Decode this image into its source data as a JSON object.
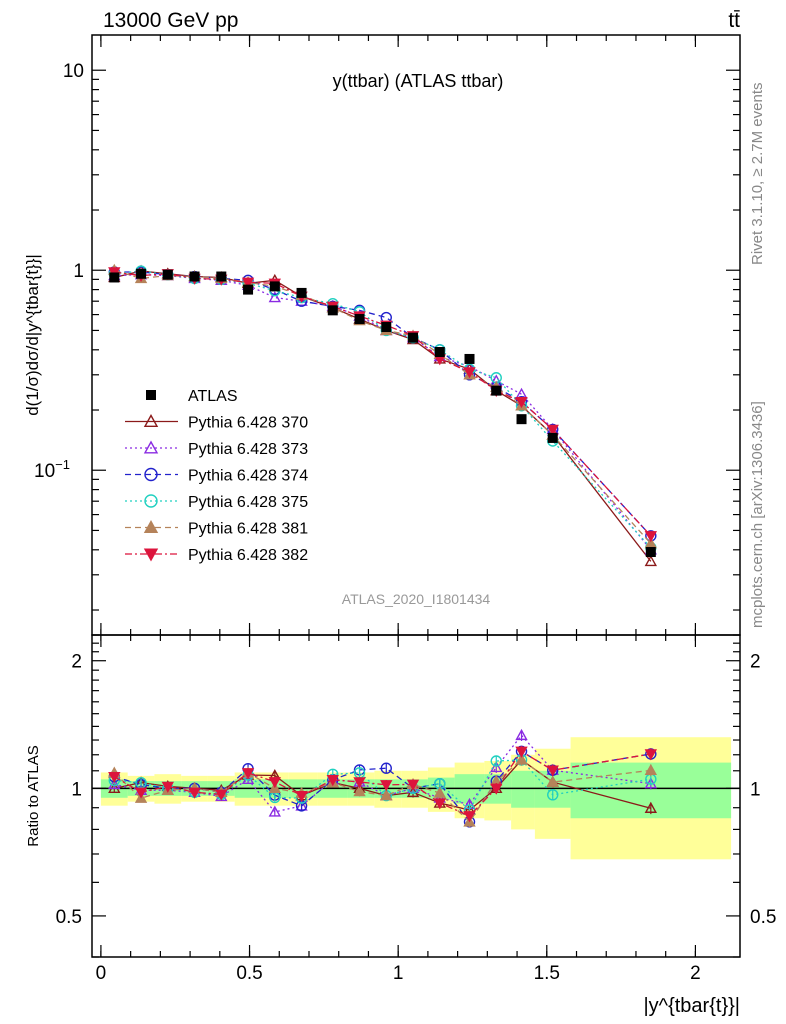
{
  "header": {
    "energy_label": "13000 GeV pp",
    "process_label": "tt̄"
  },
  "side": {
    "rivet_label": "Rivet 3.1.10, ≥ 2.7M events",
    "mcplots_label": "mcplots.cern.ch [arXiv:1306.3436]"
  },
  "chart_data": {
    "type": "line",
    "title": "y(ttbar) (ATLAS ttbar)",
    "analysis_label": "ATLAS_2020_I1801434",
    "ylabel_main": "d(1/σ)dσ/d|y^{tbar{t}}|",
    "ylabel_ratio": "Ratio to ATLAS",
    "xlabel": "|y^{tbar{t}}|",
    "x_ticks": [
      "0",
      "0.5",
      "1",
      "1.5",
      "2"
    ],
    "main_y_ticks": [
      "10^{-1}",
      "1",
      "10"
    ],
    "ratio_y_ticks": [
      "0.5",
      "1",
      "2"
    ],
    "xlim": [
      -0.03,
      2.15
    ],
    "ylim_main": [
      0.015,
      15
    ],
    "ylim_ratio": [
      0.4,
      2.3
    ],
    "y_scale_main": "log",
    "y_scale_ratio": "log",
    "legend_position": "middle-left",
    "x": [
      0.045,
      0.135,
      0.225,
      0.315,
      0.405,
      0.495,
      0.585,
      0.675,
      0.78,
      0.87,
      0.96,
      1.05,
      1.14,
      1.24,
      1.33,
      1.415,
      1.52,
      1.85
    ],
    "bin_edges": [
      0,
      0.09,
      0.18,
      0.27,
      0.36,
      0.45,
      0.54,
      0.63,
      0.73,
      0.83,
      0.92,
      1.01,
      1.1,
      1.19,
      1.29,
      1.38,
      1.46,
      1.58,
      2.12
    ],
    "data": {
      "name": "ATLAS",
      "color": "#000000",
      "values": [
        0.92,
        0.96,
        0.95,
        0.93,
        0.93,
        0.8,
        0.83,
        0.77,
        0.63,
        0.57,
        0.52,
        0.46,
        0.39,
        0.36,
        0.25,
        0.18,
        0.145,
        0.039
      ],
      "band_inner": [
        0.05,
        0.04,
        0.04,
        0.04,
        0.04,
        0.05,
        0.05,
        0.05,
        0.05,
        0.05,
        0.05,
        0.05,
        0.06,
        0.08,
        0.08,
        0.1,
        0.1,
        0.15
      ],
      "band_outer": [
        0.09,
        0.07,
        0.08,
        0.07,
        0.07,
        0.09,
        0.09,
        0.09,
        0.09,
        0.09,
        0.1,
        0.1,
        0.12,
        0.15,
        0.16,
        0.2,
        0.24,
        0.32
      ]
    },
    "series": [
      {
        "name": "Pythia 6.428 370",
        "color": "#8b1a1a",
        "marker": "triangle-up-open",
        "dash": "",
        "values": [
          0.92,
          0.99,
          0.96,
          0.93,
          0.92,
          0.86,
          0.89,
          0.74,
          0.65,
          0.57,
          0.5,
          0.45,
          0.36,
          0.32,
          0.25,
          0.21,
          0.15,
          0.035
        ]
      },
      {
        "name": "Pythia 6.428 373",
        "color": "#8a2be2",
        "marker": "triangle-up-open",
        "dash": "2,3",
        "values": [
          0.94,
          0.95,
          0.94,
          0.91,
          0.89,
          0.84,
          0.73,
          0.7,
          0.66,
          0.59,
          0.5,
          0.46,
          0.37,
          0.33,
          0.28,
          0.24,
          0.16,
          0.04
        ]
      },
      {
        "name": "Pythia 6.428 374",
        "color": "#2222cc",
        "marker": "circle-open",
        "dash": "6,4",
        "values": [
          0.98,
          0.98,
          0.95,
          0.93,
          0.91,
          0.89,
          0.8,
          0.7,
          0.66,
          0.63,
          0.58,
          0.46,
          0.4,
          0.3,
          0.26,
          0.22,
          0.16,
          0.047
        ]
      },
      {
        "name": "Pythia 6.428 375",
        "color": "#20d0c0",
        "marker": "circle-open",
        "dash": "2,3",
        "values": [
          0.96,
          0.99,
          0.95,
          0.91,
          0.9,
          0.86,
          0.79,
          0.73,
          0.68,
          0.62,
          0.5,
          0.46,
          0.4,
          0.32,
          0.29,
          0.21,
          0.14,
          0.041
        ]
      },
      {
        "name": "Pythia 6.428 381",
        "color": "#b5835a",
        "marker": "triangle-up-filled",
        "dash": "6,4",
        "values": [
          1.0,
          0.91,
          0.94,
          0.93,
          0.91,
          0.87,
          0.83,
          0.75,
          0.65,
          0.56,
          0.5,
          0.47,
          0.38,
          0.3,
          0.26,
          0.21,
          0.15,
          0.043
        ]
      },
      {
        "name": "Pythia 6.428 382",
        "color": "#dc143c",
        "marker": "triangle-down-filled",
        "dash": "7,3,2,3",
        "values": [
          0.98,
          0.94,
          0.96,
          0.91,
          0.9,
          0.87,
          0.86,
          0.74,
          0.66,
          0.59,
          0.53,
          0.47,
          0.36,
          0.31,
          0.25,
          0.22,
          0.16,
          0.047
        ]
      }
    ]
  }
}
